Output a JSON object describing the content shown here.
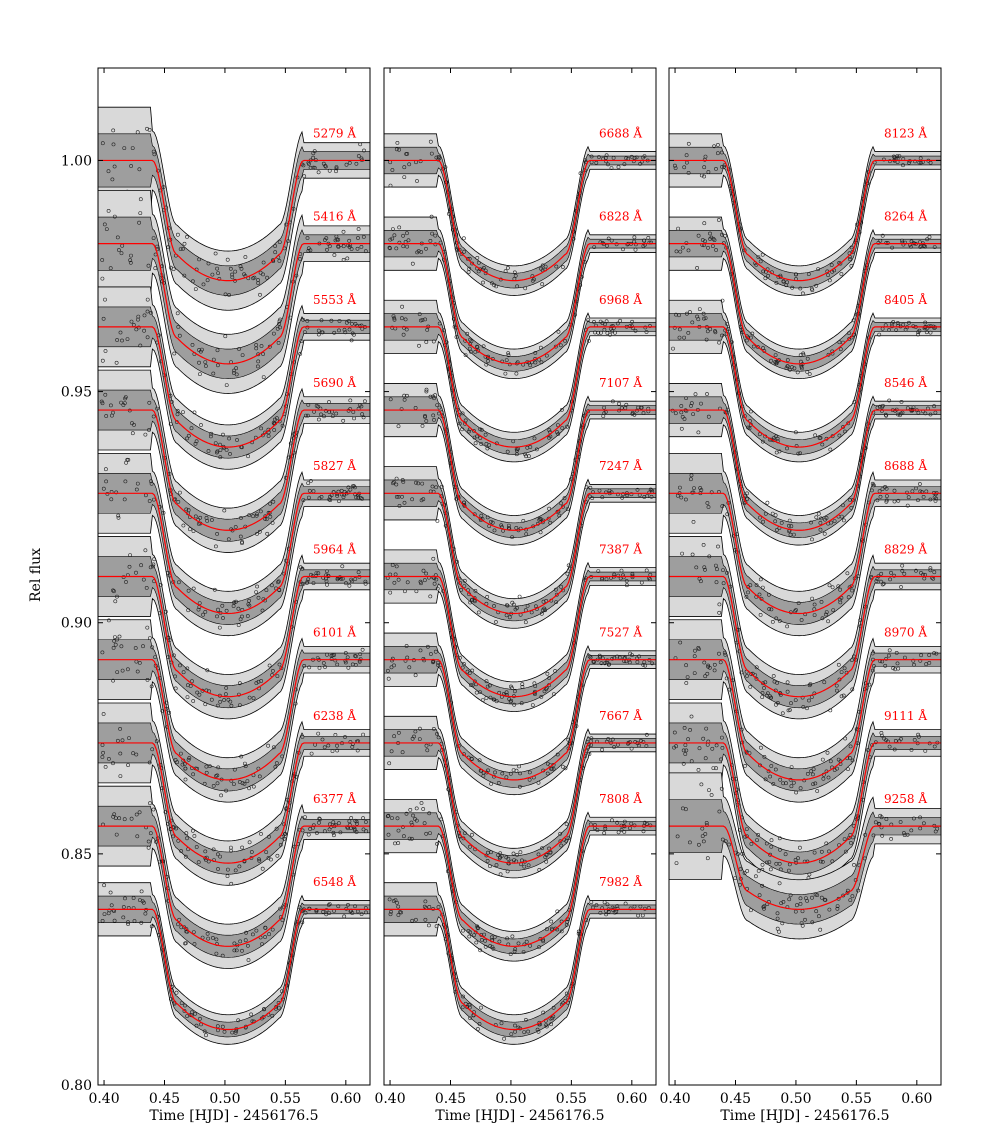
{
  "chart_data": {
    "type": "line",
    "ylabel": "Rel flux",
    "ylim": [
      0.8,
      1.02
    ],
    "yticks": [
      "0.80",
      "0.85",
      "0.90",
      "0.95",
      "1.00"
    ],
    "ytick_values": [
      0.8,
      0.85,
      0.9,
      0.95,
      1.0
    ],
    "colors": {
      "model": "#ff0000",
      "band_outer": "#d9d9d9",
      "band_inner": "#9e9e9e",
      "label": "#ff0000"
    },
    "grid": false,
    "panels": [
      {
        "xlabel": "Time [HJD] - 2456176.5",
        "xlim": [
          0.395,
          0.62
        ],
        "xticks": [
          "0.40",
          "0.45",
          "0.50",
          "0.55",
          "0.60"
        ],
        "xtick_values": [
          0.4,
          0.45,
          0.5,
          0.55,
          0.6
        ],
        "transit": {
          "t1": 0.44,
          "t2": 0.46,
          "t3": 0.545,
          "t4": 0.565
        },
        "series": [
          {
            "name": "5279 Å",
            "baseline": 1.0,
            "depth": 0.026,
            "scatter": 0.004
          },
          {
            "name": "5416 Å",
            "baseline": 0.982,
            "depth": 0.026,
            "scatter": 0.004
          },
          {
            "name": "5553 Å",
            "baseline": 0.964,
            "depth": 0.026,
            "scatter": 0.003
          },
          {
            "name": "5690 Å",
            "baseline": 0.946,
            "depth": 0.026,
            "scatter": 0.003
          },
          {
            "name": "5827 Å",
            "baseline": 0.928,
            "depth": 0.026,
            "scatter": 0.003
          },
          {
            "name": "5964 Å",
            "baseline": 0.91,
            "depth": 0.026,
            "scatter": 0.003
          },
          {
            "name": "6101 Å",
            "baseline": 0.892,
            "depth": 0.026,
            "scatter": 0.003
          },
          {
            "name": "6238 Å",
            "baseline": 0.874,
            "depth": 0.026,
            "scatter": 0.003
          },
          {
            "name": "6377 Å",
            "baseline": 0.856,
            "depth": 0.026,
            "scatter": 0.003
          },
          {
            "name": "6548 Å",
            "baseline": 0.838,
            "depth": 0.026,
            "scatter": 0.002
          }
        ]
      },
      {
        "xlabel": "Time [HJD] - 2456176.5",
        "xlim": [
          0.395,
          0.62
        ],
        "xticks": [
          "0.40",
          "0.45",
          "0.50",
          "0.55",
          "0.60"
        ],
        "xtick_values": [
          0.4,
          0.45,
          0.5,
          0.55,
          0.6
        ],
        "transit": {
          "t1": 0.44,
          "t2": 0.46,
          "t3": 0.545,
          "t4": 0.565
        },
        "series": [
          {
            "name": "6688 Å",
            "baseline": 1.0,
            "depth": 0.026,
            "scatter": 0.002
          },
          {
            "name": "6828 Å",
            "baseline": 0.982,
            "depth": 0.026,
            "scatter": 0.002
          },
          {
            "name": "6968 Å",
            "baseline": 0.964,
            "depth": 0.026,
            "scatter": 0.002
          },
          {
            "name": "7107 Å",
            "baseline": 0.946,
            "depth": 0.026,
            "scatter": 0.002
          },
          {
            "name": "7247 Å",
            "baseline": 0.928,
            "depth": 0.026,
            "scatter": 0.002
          },
          {
            "name": "7387 Å",
            "baseline": 0.91,
            "depth": 0.026,
            "scatter": 0.002
          },
          {
            "name": "7527 Å",
            "baseline": 0.892,
            "depth": 0.026,
            "scatter": 0.002
          },
          {
            "name": "7667 Å",
            "baseline": 0.874,
            "depth": 0.026,
            "scatter": 0.002
          },
          {
            "name": "7808 Å",
            "baseline": 0.856,
            "depth": 0.026,
            "scatter": 0.002
          },
          {
            "name": "7982 Å",
            "baseline": 0.838,
            "depth": 0.026,
            "scatter": 0.002
          }
        ]
      },
      {
        "xlabel": "Time [HJD] - 2456176.5",
        "xlim": [
          0.395,
          0.62
        ],
        "xticks": [
          "0.40",
          "0.45",
          "0.50",
          "0.55",
          "0.60"
        ],
        "xtick_values": [
          0.4,
          0.45,
          0.5,
          0.55,
          0.6
        ],
        "transit": {
          "t1": 0.44,
          "t2": 0.46,
          "t3": 0.545,
          "t4": 0.565
        },
        "series": [
          {
            "name": "8123 Å",
            "baseline": 1.0,
            "depth": 0.026,
            "scatter": 0.002
          },
          {
            "name": "8264 Å",
            "baseline": 0.982,
            "depth": 0.026,
            "scatter": 0.002
          },
          {
            "name": "8405 Å",
            "baseline": 0.964,
            "depth": 0.026,
            "scatter": 0.002
          },
          {
            "name": "8546 Å",
            "baseline": 0.946,
            "depth": 0.026,
            "scatter": 0.002
          },
          {
            "name": "8688 Å",
            "baseline": 0.928,
            "depth": 0.026,
            "scatter": 0.003
          },
          {
            "name": "8829 Å",
            "baseline": 0.91,
            "depth": 0.026,
            "scatter": 0.003
          },
          {
            "name": "8970 Å",
            "baseline": 0.892,
            "depth": 0.026,
            "scatter": 0.003
          },
          {
            "name": "9111 Å",
            "baseline": 0.874,
            "depth": 0.026,
            "scatter": 0.003
          },
          {
            "name": "9258 Å",
            "baseline": 0.856,
            "depth": 0.018,
            "scatter": 0.004
          }
        ]
      }
    ]
  }
}
